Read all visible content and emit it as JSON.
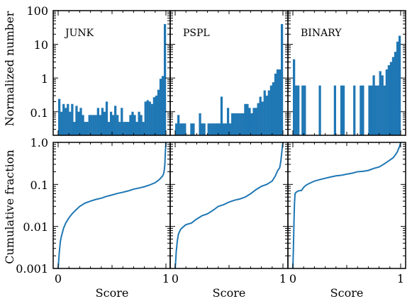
{
  "chart_data": [
    {
      "type": "bar",
      "panel": "JUNK",
      "label": "JUNK",
      "ylabel": "Normalized number",
      "yscale": "log",
      "ylim": [
        0.02,
        100
      ],
      "yticks": [
        "0.1",
        "1",
        "10",
        "100"
      ],
      "xlim": [
        0,
        1
      ],
      "bins": 50,
      "values": [
        0.24,
        0.1,
        0.17,
        0.13,
        0.17,
        0.1,
        0.17,
        0.05,
        0.15,
        0.1,
        0.13,
        0.08,
        0.05,
        0.05,
        0.08,
        0.08,
        0.08,
        0.08,
        0.13,
        0.08,
        0.13,
        0.1,
        0.2,
        0.05,
        0.1,
        0.08,
        0.15,
        0.08,
        0.05,
        0.13,
        0.05,
        0.05,
        0.05,
        0.08,
        0.1,
        0.08,
        0.05,
        0.1,
        0.08,
        0.05,
        0.2,
        0.22,
        0.2,
        0.17,
        0.27,
        0.3,
        0.45,
        0.95,
        1.15,
        40
      ]
    },
    {
      "type": "bar",
      "panel": "PSPL",
      "label": "PSPL",
      "yscale": "log",
      "ylim": [
        0.02,
        100
      ],
      "xlim": [
        0,
        1
      ],
      "bins": 50,
      "values": [
        0.045,
        0.08,
        0.045,
        0.045,
        0.045,
        0.0,
        0.0,
        0.045,
        0.045,
        0.0,
        0.0,
        0.09,
        0.045,
        0.045,
        0.0,
        0.045,
        0.045,
        0.045,
        0.045,
        0.045,
        0.045,
        0.28,
        0.045,
        0.045,
        0.13,
        0.045,
        0.09,
        0.09,
        0.09,
        0.09,
        0.09,
        0.09,
        0.17,
        0.17,
        0.13,
        0.09,
        0.13,
        0.13,
        0.18,
        0.28,
        0.2,
        0.43,
        0.3,
        0.43,
        0.6,
        0.75,
        1.35,
        1.8,
        1.8,
        40
      ]
    },
    {
      "type": "bar",
      "panel": "BINARY",
      "label": "BINARY",
      "xlabel": "Score",
      "yscale": "log",
      "ylim": [
        0.02,
        100
      ],
      "xlim": [
        0,
        1
      ],
      "bins": 50,
      "values": [
        3.6,
        0.6,
        0.6,
        0.0,
        0.6,
        0.6,
        0.0,
        0.0,
        0.0,
        0.0,
        0.0,
        0.0,
        0.6,
        0.0,
        0.0,
        0.0,
        0.0,
        0.0,
        0.0,
        0.6,
        0.0,
        0.0,
        0.6,
        0.6,
        0.0,
        0.0,
        0.0,
        0.0,
        0.6,
        0.0,
        0.0,
        0.6,
        0.6,
        0.0,
        0.0,
        0.6,
        0.6,
        1.2,
        0.6,
        0.6,
        1.6,
        1.2,
        0.6,
        1.8,
        2.4,
        3.0,
        4.2,
        6.0,
        12,
        18
      ]
    },
    {
      "type": "line",
      "panel": "JUNK-cumulative",
      "ylabel": "Cumulative fraction",
      "xlabel": "Score",
      "yscale": "log",
      "ylim": [
        0.001,
        1
      ],
      "yticks": [
        "0.001",
        "0.01",
        "0.1",
        "1.0"
      ],
      "xticks": [
        "0",
        "1"
      ],
      "xlim": [
        0,
        1
      ],
      "x": [
        0.0,
        0.01,
        0.02,
        0.03,
        0.05,
        0.07,
        0.1,
        0.13,
        0.16,
        0.2,
        0.25,
        0.3,
        0.35,
        0.4,
        0.45,
        0.5,
        0.55,
        0.6,
        0.65,
        0.7,
        0.75,
        0.8,
        0.85,
        0.9,
        0.93,
        0.95,
        0.97,
        0.98,
        0.985,
        0.99,
        0.995,
        1.0
      ],
      "y": [
        0.0009,
        0.0023,
        0.0043,
        0.0058,
        0.009,
        0.012,
        0.016,
        0.02,
        0.024,
        0.03,
        0.036,
        0.04,
        0.044,
        0.047,
        0.052,
        0.056,
        0.061,
        0.065,
        0.07,
        0.077,
        0.082,
        0.088,
        0.097,
        0.11,
        0.125,
        0.14,
        0.16,
        0.185,
        0.22,
        0.3,
        0.6,
        1.0
      ]
    },
    {
      "type": "line",
      "panel": "PSPL-cumulative",
      "xlabel": "Score",
      "yscale": "log",
      "ylim": [
        0.001,
        1
      ],
      "xticks": [
        "0",
        "1"
      ],
      "xlim": [
        0,
        1
      ],
      "x": [
        0.0,
        0.005,
        0.01,
        0.02,
        0.03,
        0.05,
        0.08,
        0.1,
        0.15,
        0.2,
        0.25,
        0.3,
        0.35,
        0.4,
        0.45,
        0.5,
        0.55,
        0.6,
        0.65,
        0.7,
        0.75,
        0.8,
        0.85,
        0.9,
        0.93,
        0.95,
        0.97,
        0.98,
        0.99,
        0.995,
        1.0
      ],
      "y": [
        0.0009,
        0.0015,
        0.0025,
        0.0045,
        0.0065,
        0.0085,
        0.01,
        0.011,
        0.012,
        0.015,
        0.018,
        0.02,
        0.024,
        0.03,
        0.033,
        0.038,
        0.042,
        0.045,
        0.05,
        0.06,
        0.075,
        0.09,
        0.1,
        0.12,
        0.16,
        0.21,
        0.25,
        0.35,
        0.6,
        0.8,
        1.0
      ]
    },
    {
      "type": "line",
      "panel": "BINARY-cumulative",
      "xlabel": "Score",
      "yscale": "log",
      "ylim": [
        0.001,
        1
      ],
      "xticks": [
        "0",
        "1"
      ],
      "xlim": [
        0,
        1
      ],
      "x": [
        0.0,
        0.005,
        0.01,
        0.015,
        0.02,
        0.03,
        0.05,
        0.08,
        0.1,
        0.12,
        0.15,
        0.2,
        0.25,
        0.3,
        0.35,
        0.4,
        0.45,
        0.5,
        0.55,
        0.6,
        0.65,
        0.7,
        0.75,
        0.8,
        0.85,
        0.9,
        0.93,
        0.95,
        0.97,
        0.98,
        0.99,
        1.0
      ],
      "y": [
        0.0009,
        0.003,
        0.012,
        0.035,
        0.06,
        0.065,
        0.07,
        0.072,
        0.085,
        0.095,
        0.105,
        0.12,
        0.13,
        0.14,
        0.15,
        0.16,
        0.165,
        0.175,
        0.185,
        0.2,
        0.205,
        0.215,
        0.24,
        0.26,
        0.31,
        0.38,
        0.43,
        0.5,
        0.6,
        0.7,
        0.8,
        1.0
      ]
    }
  ],
  "colors": {
    "bar": "#1f77b4",
    "line": "#1f77b4"
  }
}
